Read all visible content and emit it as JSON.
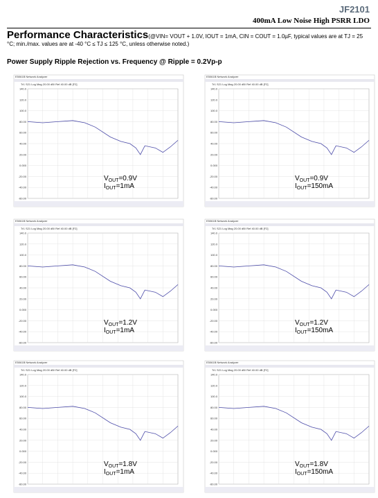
{
  "header": {
    "part_number": "JF2101",
    "subtitle": "400mA Low Noise High PSRR LDO"
  },
  "section": {
    "title": "Performance Characteristics",
    "conditions": "(@VIN= VOUT + 1.0V, IOUT = 1mA, CIN = COUT = 1.0µF, typical values are at TJ = 25 °C; min./max. values are at -40 °C ≤ TJ ≤ 125 °C, unless otherwise noted.)"
  },
  "figure": {
    "title": "Power Supply Ripple Rejection vs. Frequency @ Ripple = 0.2Vp-p",
    "instrument": "E5061B Network Analyzer",
    "trace": "Tr1 S21 Log Mag 20.00 dB/ Ref 40.00 dB [F2]",
    "axis_labels": [
      "140.0",
      "120.0",
      "100.0",
      "80.00",
      "60.00",
      "40.00",
      "20.00",
      "0.000",
      "-20.00",
      "-40.00",
      "-60.00"
    ],
    "panels": [
      {
        "v": "V",
        "v_sub": "OUT",
        "v_rest": "=0.9V",
        "i": "I",
        "i_sub": "OUT",
        "i_rest": "=1mA"
      },
      {
        "v": "V",
        "v_sub": "OUT",
        "v_rest": "=0.9V",
        "i": "I",
        "i_sub": "OUT",
        "i_rest": "=150mA"
      },
      {
        "v": "V",
        "v_sub": "OUT",
        "v_rest": "=1.2V",
        "i": "I",
        "i_sub": "OUT",
        "i_rest": "=1mA"
      },
      {
        "v": "V",
        "v_sub": "OUT",
        "v_rest": "=1.2V",
        "i": "I",
        "i_sub": "OUT",
        "i_rest": "=150mA"
      },
      {
        "v": "V",
        "v_sub": "OUT",
        "v_rest": "=1.8V",
        "i": "I",
        "i_sub": "OUT",
        "i_rest": "=1mA"
      },
      {
        "v": "V",
        "v_sub": "OUT",
        "v_rest": "=1.8V",
        "i": "I",
        "i_sub": "OUT",
        "i_rest": "=150mA"
      }
    ]
  }
}
